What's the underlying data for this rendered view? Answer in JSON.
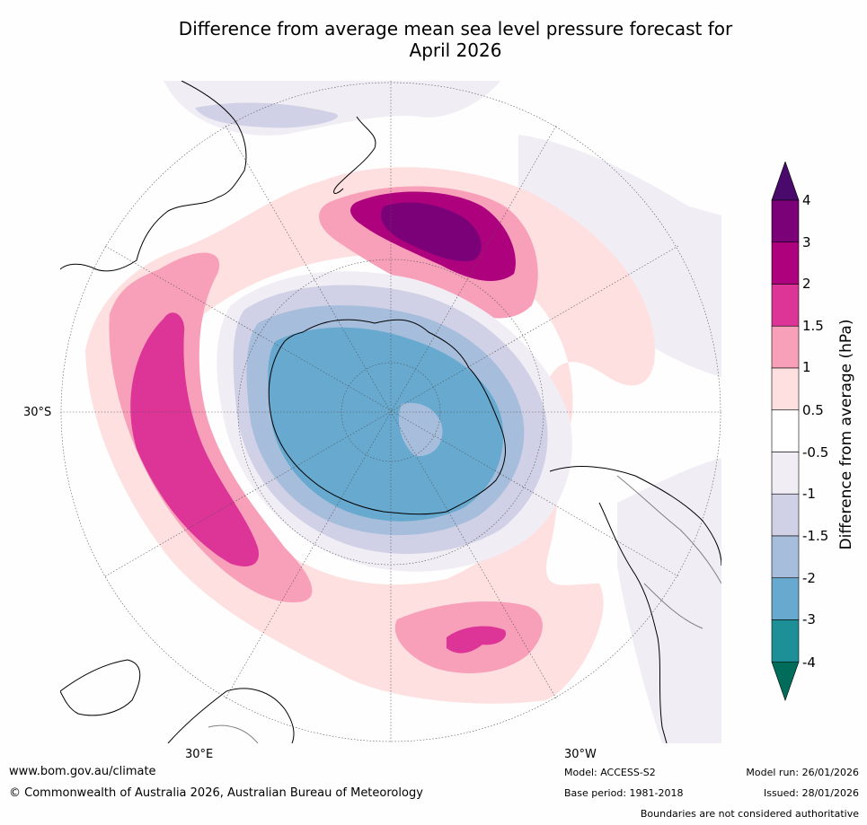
{
  "title": {
    "line1": "Difference from average mean sea level pressure forecast for",
    "line2": "April 2026"
  },
  "map": {
    "projection": "south polar stereographic",
    "axis_labels": {
      "lat_left": "30°S",
      "lon_bottom_left": "30°E",
      "lon_bottom_right": "30°W"
    }
  },
  "colorbar": {
    "label": "Difference from average (hPa)",
    "ticks": [
      "4",
      "3",
      "2",
      "1.5",
      "1",
      "0.5",
      "-0.5",
      "-1",
      "-1.5",
      "-2",
      "-3",
      "-4"
    ],
    "bins": [
      {
        "range": "> 4",
        "color": "#4a0a6b"
      },
      {
        "range": "3 to 4",
        "color": "#7b0178"
      },
      {
        "range": "2 to 3",
        "color": "#ae017e"
      },
      {
        "range": "1.5 to 2",
        "color": "#dd3497"
      },
      {
        "range": "1 to 1.5",
        "color": "#f89fb9"
      },
      {
        "range": "0.5 to 1",
        "color": "#fde0df"
      },
      {
        "range": "-0.5 to 0.5",
        "color": "#ffffff"
      },
      {
        "range": "-1 to -0.5",
        "color": "#f1edf5"
      },
      {
        "range": "-1.5 to -1",
        "color": "#d0d1e6"
      },
      {
        "range": "-2 to -1.5",
        "color": "#a6bddb"
      },
      {
        "range": "-3 to -2",
        "color": "#67a9cf"
      },
      {
        "range": "-4 to -3",
        "color": "#1c8f97"
      },
      {
        "range": "< -4",
        "color": "#016c59"
      }
    ]
  },
  "footer": {
    "url": "www.bom.gov.au/climate",
    "copyright": "© Commonwealth of Australia 2026, Australian Bureau of Meteorology",
    "model": "Model: ACCESS-S2",
    "base_period": "Base period: 1981-2018",
    "model_run": "Model run: 26/01/2026",
    "issued": "Issued: 28/01/2026",
    "disclaimer": "Boundaries are not considered authoritative"
  },
  "colors": {
    "coast": "#000000",
    "border": "#808080",
    "grid": "#555555"
  }
}
